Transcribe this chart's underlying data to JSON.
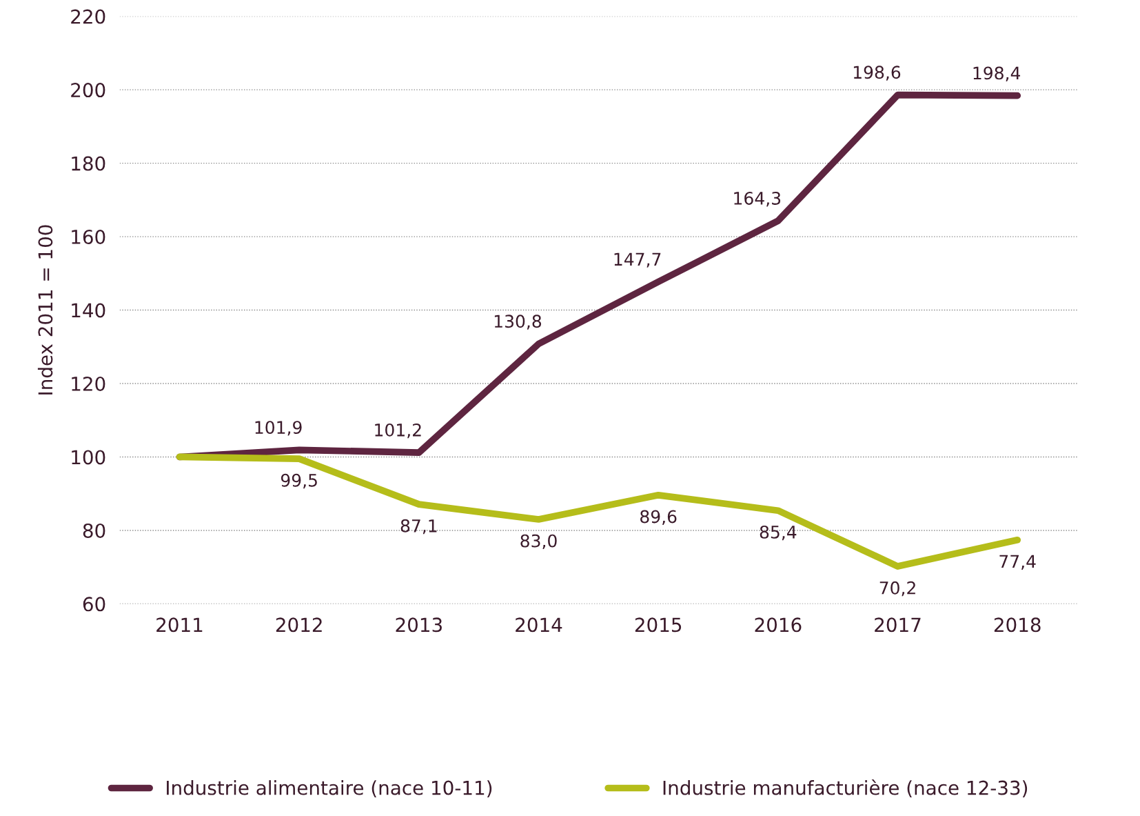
{
  "chart_data": {
    "type": "line",
    "ylabel": "Index 2011 = 100",
    "categories": [
      "2011",
      "2012",
      "2013",
      "2014",
      "2015",
      "2016",
      "2017",
      "2018"
    ],
    "series": [
      {
        "name": "Industrie alimentaire (nace 10-11)",
        "color": "#5e2540",
        "values": [
          100,
          101.9,
          101.2,
          130.8,
          147.7,
          164.3,
          198.6,
          198.4
        ],
        "value_labels": [
          null,
          "101,9",
          "101,2",
          "130,8",
          "147,7",
          "164,3",
          "198,6",
          "198,4"
        ]
      },
      {
        "name": "Industrie manufacturière (nace 12-33)",
        "color": "#b5bd1a",
        "values": [
          100,
          99.5,
          87.1,
          83.0,
          89.6,
          85.4,
          70.2,
          77.4
        ],
        "value_labels": [
          null,
          "99,5",
          "87,1",
          "83,0",
          "89,6",
          "85,4",
          "70,2",
          "77,4"
        ]
      }
    ],
    "ylim": [
      60,
      220
    ],
    "yticks": [
      60,
      80,
      100,
      120,
      140,
      160,
      180,
      200,
      220
    ],
    "grid": "y",
    "legend": "bottom",
    "line_style": "solid",
    "marker": "none"
  }
}
